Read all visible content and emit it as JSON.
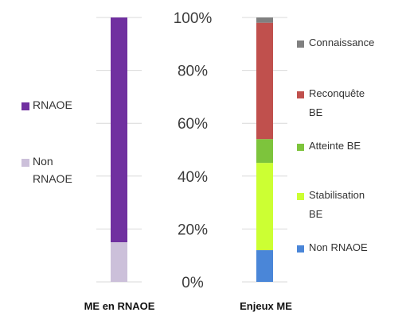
{
  "chart_data": {
    "type": "bar",
    "stacked": true,
    "percent_axis": true,
    "y_ticks": [
      "0%",
      "20%",
      "40%",
      "60%",
      "80%",
      "100%"
    ],
    "ylim": [
      0,
      100
    ],
    "grid": true,
    "categories": [
      "ME en RNAOE",
      "Enjeux ME"
    ],
    "bars": [
      {
        "category": "ME en RNAOE",
        "legend_position": "left",
        "segments": [
          {
            "name": "Non RNAOE",
            "value": 15,
            "color": "#ccc0da"
          },
          {
            "name": "RNAOE",
            "value": 85,
            "color": "#7030a0"
          }
        ]
      },
      {
        "category": "Enjeux ME",
        "legend_position": "right",
        "segments": [
          {
            "name": "Non RNAOE",
            "value": 12,
            "color": "#4a86d8"
          },
          {
            "name": "Stabilisation BE",
            "value": 33,
            "color": "#ccff33"
          },
          {
            "name": "Atteinte BE",
            "value": 9,
            "color": "#7dc43c"
          },
          {
            "name": "Reconquête BE",
            "value": 44,
            "color": "#c0504d"
          },
          {
            "name": "Connaissance",
            "value": 2,
            "color": "#808080"
          }
        ]
      }
    ],
    "legends": {
      "left": [
        {
          "lines": [
            "RNAOE"
          ],
          "color": "#7030a0"
        },
        {
          "lines": [
            "Non",
            "RNAOE"
          ],
          "color": "#ccc0da"
        }
      ],
      "right": [
        {
          "lines": [
            "Connaissance"
          ],
          "color": "#808080"
        },
        {
          "lines": [
            "Reconquête",
            "BE"
          ],
          "color": "#c0504d"
        },
        {
          "lines": [
            "Atteinte BE"
          ],
          "color": "#7dc43c"
        },
        {
          "lines": [
            "Stabilisation",
            "BE"
          ],
          "color": "#ccff33"
        },
        {
          "lines": [
            "Non RNAOE"
          ],
          "color": "#4a86d8"
        }
      ]
    }
  }
}
